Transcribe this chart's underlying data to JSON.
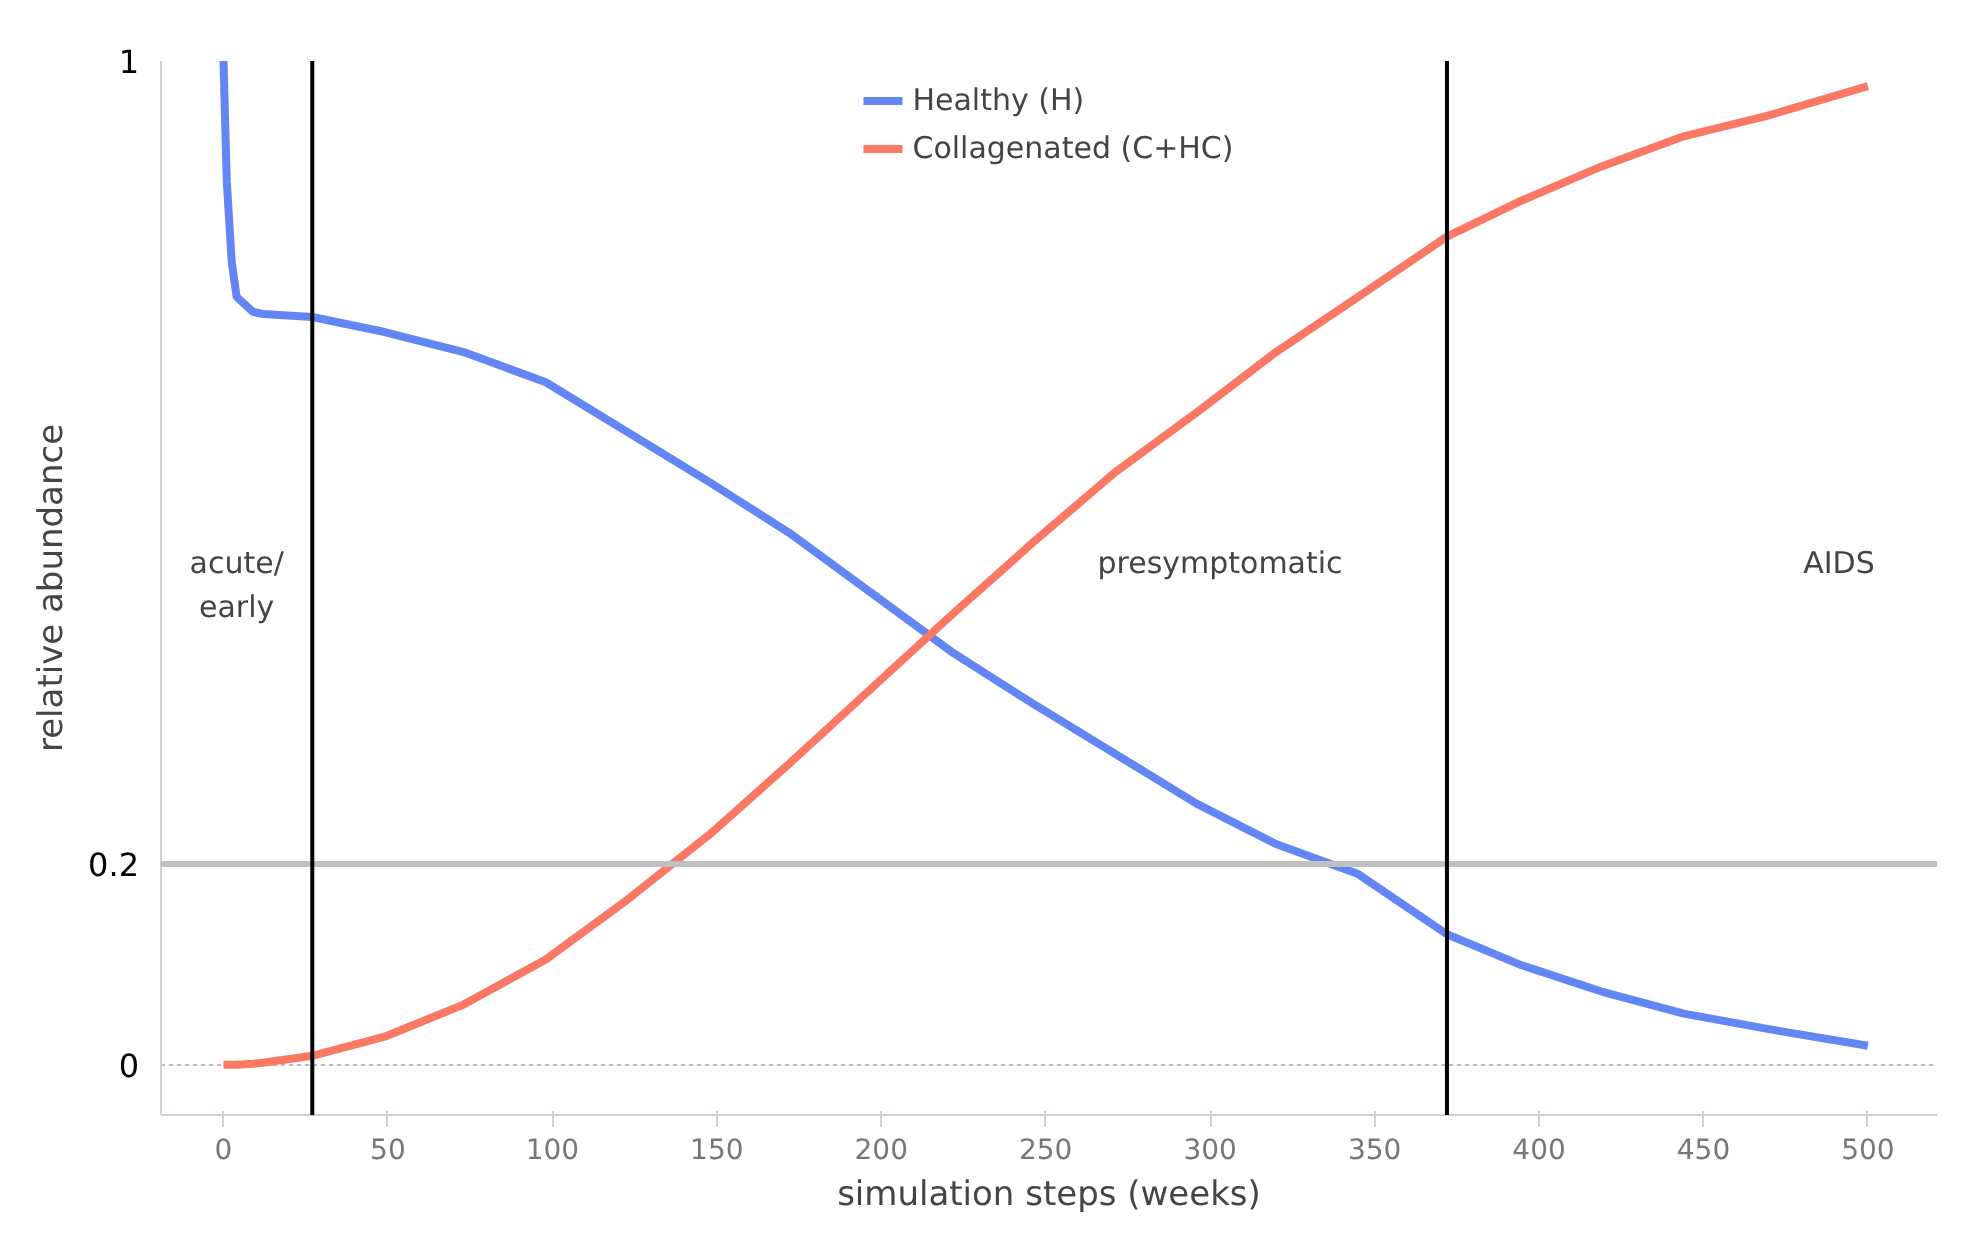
{
  "chart_data": {
    "type": "line",
    "xlabel": "simulation steps (weeks)",
    "ylabel": "relative abundance",
    "xlim": [
      -19,
      521
    ],
    "xticks": [
      0,
      50,
      100,
      150,
      200,
      250,
      300,
      350,
      400,
      450,
      500
    ],
    "ylim": [
      -0.05,
      1.0
    ],
    "yticks": [
      0,
      0.2,
      1
    ],
    "grid": "y",
    "legend": "top",
    "marker": "none",
    "line_style": "solid",
    "x": [
      0,
      1,
      2.5,
      4,
      9,
      12,
      27,
      49,
      73,
      98,
      123,
      148,
      172,
      197,
      222,
      246,
      271,
      296,
      320,
      345,
      372,
      394,
      419,
      444,
      469,
      500
    ],
    "series": [
      {
        "name": "Healthy (H)",
        "color": "#6287f5",
        "values": [
          1.0,
          0.88,
          0.8,
          0.765,
          0.75,
          0.748,
          0.745,
          0.73,
          0.71,
          0.68,
          0.63,
          0.58,
          0.53,
          0.47,
          0.41,
          0.36,
          0.31,
          0.26,
          0.22,
          0.19,
          0.13,
          0.1,
          0.073,
          0.051,
          0.036,
          0.019
        ]
      },
      {
        "name": "Collagenated (C+HC)",
        "color": "#fa7864",
        "values": [
          0,
          0,
          0,
          0,
          0.001,
          0.002,
          0.009,
          0.028,
          0.06,
          0.105,
          0.165,
          0.23,
          0.3,
          0.375,
          0.45,
          0.52,
          0.59,
          0.65,
          0.71,
          0.765,
          0.825,
          0.86,
          0.895,
          0.925,
          0.945,
          0.975
        ]
      }
    ],
    "ref_lines": [
      {
        "axis": "y",
        "value": 0.2,
        "color": "#c0c0c0"
      },
      {
        "axis": "x",
        "value": 27,
        "color": "#000000"
      },
      {
        "axis": "x",
        "value": 372,
        "color": "#000000"
      }
    ],
    "annotations": [
      "acute/\nearly",
      "presymptomatic",
      "AIDS"
    ]
  }
}
